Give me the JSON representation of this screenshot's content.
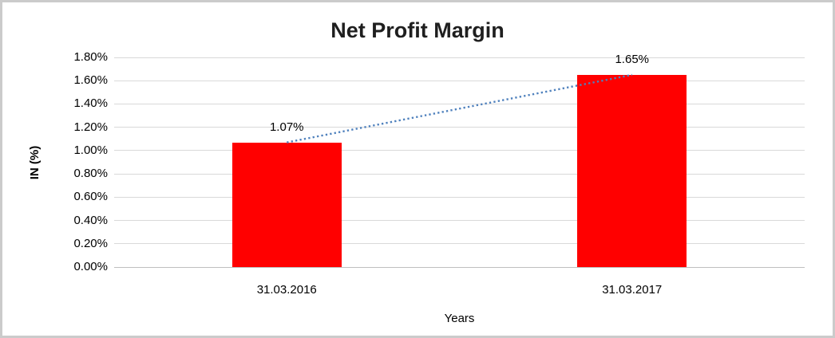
{
  "chart_data": {
    "type": "bar",
    "title": "Net Profit Margin",
    "categories": [
      "31.03.2016",
      "31.03.2017"
    ],
    "series": [
      {
        "name": "Net Profit Margin",
        "values": [
          1.07,
          1.65
        ]
      }
    ],
    "data_labels": [
      "1.07%",
      "1.65%"
    ],
    "xlabel": "Years",
    "ylabel": "IN (%)",
    "ylim": [
      0,
      1.8
    ],
    "ytick_step": 0.2,
    "ytick_labels": [
      "0.00%",
      "0.20%",
      "0.40%",
      "0.60%",
      "0.80%",
      "1.00%",
      "1.20%",
      "1.40%",
      "1.60%",
      "1.80%"
    ],
    "grid": true,
    "legend": "none",
    "bar_color": "#ff0000",
    "trendline": {
      "type": "linear",
      "style": "dotted",
      "color": "#4f81bd"
    }
  },
  "colors": {
    "gridline": "#d9d9d9",
    "axis_line": "#bfbfbf",
    "text": "#000000",
    "title_text": "#1f1f1f",
    "chart_border": "#cbcbcb",
    "background": "#ffffff"
  }
}
